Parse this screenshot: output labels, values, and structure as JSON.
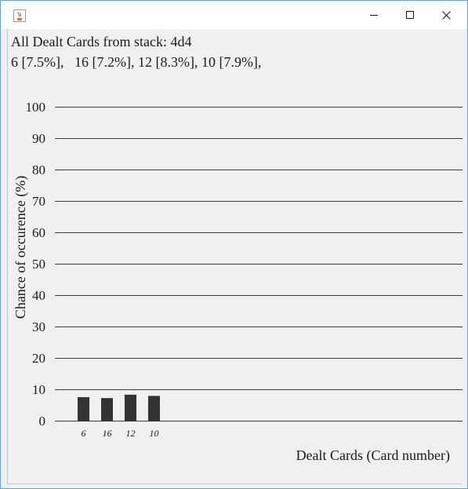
{
  "window": {
    "icon": "java-cup-icon",
    "controls": [
      "minimize-icon",
      "maximize-icon",
      "close-icon"
    ]
  },
  "header": {
    "stack_line": "All Dealt Cards from stack: 4d4",
    "cards_line": "6 [7.5%],   16 [7.2%], 12 [8.3%], 10 [7.9%],"
  },
  "chart_data": {
    "type": "bar",
    "title": "",
    "xlabel": "Dealt Cards (Card number)",
    "ylabel": "Chance of occurence (%)",
    "categories": [
      "6",
      "16",
      "12",
      "10"
    ],
    "values": [
      7.5,
      7.2,
      8.3,
      7.9
    ],
    "ylim": [
      0,
      100
    ],
    "yticks": [
      0,
      10,
      20,
      30,
      40,
      50,
      60,
      70,
      80,
      90,
      100
    ],
    "grid": true,
    "bar_color": "#333333"
  }
}
